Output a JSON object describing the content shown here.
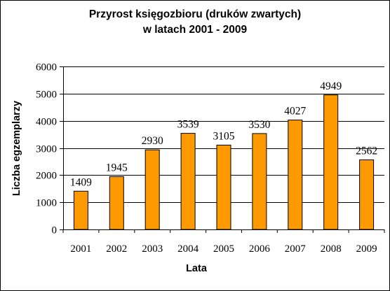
{
  "chart_data": {
    "type": "bar",
    "title_lines": [
      "Przyrost księgozbioru (druków zwartych)",
      "w latach 2001 - 2009"
    ],
    "xlabel": "Lata",
    "ylabel": "Liczba egzemplarzy",
    "categories": [
      "2001",
      "2002",
      "2003",
      "2004",
      "2005",
      "2006",
      "2007",
      "2008",
      "2009"
    ],
    "values": [
      1409,
      1945,
      2930,
      3539,
      3105,
      3530,
      4027,
      4949,
      2562
    ],
    "ylim": [
      0,
      6000
    ],
    "yticks": [
      0,
      1000,
      2000,
      3000,
      4000,
      5000,
      6000
    ],
    "grid": true,
    "legend": "none",
    "bar_color": "#FF9900",
    "bar_edge_color": "#000000"
  }
}
